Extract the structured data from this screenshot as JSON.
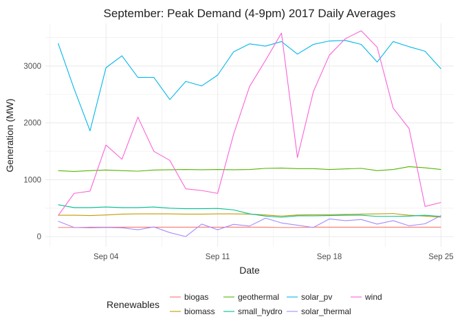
{
  "chart_data": {
    "type": "line",
    "title": "September: Peak Demand (4-9pm) 2017 Daily Averages",
    "xlabel": "Date",
    "ylabel": "Generation (MW)",
    "x": [
      1,
      2,
      3,
      4,
      5,
      6,
      7,
      8,
      9,
      10,
      11,
      12,
      13,
      14,
      15,
      16,
      17,
      18,
      19,
      20,
      21,
      22,
      23,
      24,
      25
    ],
    "x_ticks": [
      {
        "value": 4,
        "label": "Sep 04"
      },
      {
        "value": 11,
        "label": "Sep 11"
      },
      {
        "value": 18,
        "label": "Sep 18"
      },
      {
        "value": 25,
        "label": "Sep 25"
      }
    ],
    "xlim": [
      0.2,
      25.8
    ],
    "ylim": [
      -180,
      3750
    ],
    "y_ticks": [
      0,
      1000,
      2000,
      3000
    ],
    "grid": true,
    "legend": {
      "title": "Renewables",
      "position": "bottom"
    },
    "series": [
      {
        "name": "biogas",
        "color": "#F8766D",
        "values": [
          160,
          160,
          165,
          165,
          165,
          165,
          165,
          165,
          165,
          165,
          165,
          165,
          165,
          165,
          160,
          160,
          165,
          165,
          165,
          165,
          165,
          165,
          165,
          165,
          165
        ]
      },
      {
        "name": "biomass",
        "color": "#C49A00",
        "values": [
          375,
          375,
          370,
          380,
          395,
          400,
          400,
          400,
          395,
          395,
          400,
          400,
          395,
          380,
          360,
          380,
          385,
          385,
          390,
          395,
          400,
          405,
          375,
          360,
          340
        ]
      },
      {
        "name": "geothermal",
        "color": "#53B400",
        "values": [
          1160,
          1145,
          1160,
          1170,
          1160,
          1150,
          1170,
          1175,
          1180,
          1175,
          1180,
          1175,
          1180,
          1200,
          1205,
          1195,
          1195,
          1180,
          1190,
          1200,
          1160,
          1180,
          1230,
          1210,
          1180
        ]
      },
      {
        "name": "small_hydro",
        "color": "#00C094",
        "values": [
          560,
          510,
          510,
          520,
          510,
          510,
          520,
          500,
          490,
          490,
          495,
          470,
          400,
          360,
          340,
          365,
          365,
          370,
          375,
          375,
          355,
          355,
          360,
          375,
          355
        ]
      },
      {
        "name": "solar_pv",
        "color": "#00B6EB",
        "values": [
          3400,
          2600,
          1860,
          2970,
          3180,
          2800,
          2800,
          2410,
          2730,
          2650,
          2840,
          3250,
          3390,
          3350,
          3430,
          3210,
          3380,
          3440,
          3450,
          3380,
          3070,
          3430,
          3340,
          3260,
          2950
        ]
      },
      {
        "name": "solar_thermal",
        "color": "#A58AFF",
        "values": [
          270,
          160,
          155,
          160,
          155,
          120,
          170,
          70,
          0,
          220,
          120,
          215,
          185,
          325,
          240,
          200,
          160,
          310,
          280,
          300,
          220,
          280,
          190,
          225,
          370
        ]
      },
      {
        "name": "wind",
        "color": "#FB61D7",
        "values": [
          370,
          760,
          800,
          1610,
          1360,
          2100,
          1500,
          1340,
          840,
          810,
          760,
          1800,
          2640,
          3100,
          3580,
          1390,
          2550,
          3190,
          3480,
          3620,
          3330,
          2260,
          1900,
          530,
          600
        ]
      }
    ]
  }
}
